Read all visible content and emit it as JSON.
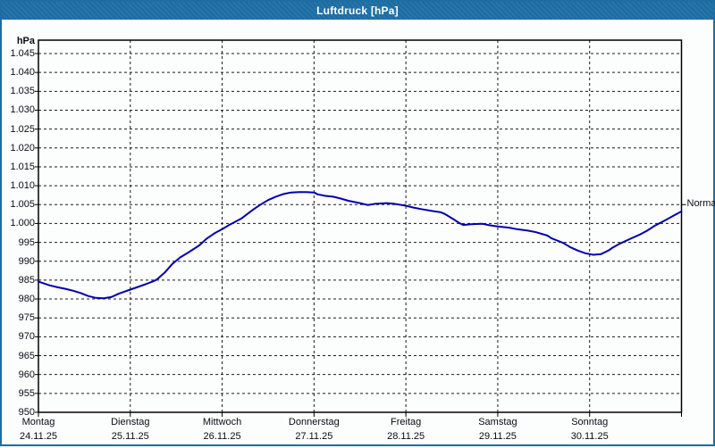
{
  "window": {
    "title": "Luftdruck [hPa]",
    "titlebar_color": "#1d6ea4",
    "border_color": "#1d6ea4"
  },
  "chart_data": {
    "type": "line",
    "title": "Luftdruck [hPa]",
    "ylabel": "hPa",
    "unit_label": "hPa",
    "ylim": [
      950,
      1048.6
    ],
    "grid": "dashed",
    "line_color": "#0000b4",
    "y_ticks": [
      {
        "v": 950,
        "label": "950"
      },
      {
        "v": 955,
        "label": "955"
      },
      {
        "v": 960,
        "label": "960"
      },
      {
        "v": 965,
        "label": "965"
      },
      {
        "v": 970,
        "label": "970"
      },
      {
        "v": 975,
        "label": "975"
      },
      {
        "v": 980,
        "label": "980"
      },
      {
        "v": 985,
        "label": "985"
      },
      {
        "v": 990,
        "label": "990"
      },
      {
        "v": 995,
        "label": "995"
      },
      {
        "v": 1000,
        "label": "1.000"
      },
      {
        "v": 1005,
        "label": "1.005"
      },
      {
        "v": 1010,
        "label": "1.010"
      },
      {
        "v": 1015,
        "label": "1.015"
      },
      {
        "v": 1020,
        "label": "1.020"
      },
      {
        "v": 1025,
        "label": "1.025"
      },
      {
        "v": 1030,
        "label": "1.030"
      },
      {
        "v": 1035,
        "label": "1.035"
      },
      {
        "v": 1040,
        "label": "1.040"
      },
      {
        "v": 1045,
        "label": "1.045"
      }
    ],
    "x_days": [
      {
        "name": "Montag",
        "date": "24.11.25"
      },
      {
        "name": "Dienstag",
        "date": "25.11.25"
      },
      {
        "name": "Mittwoch",
        "date": "26.11.25"
      },
      {
        "name": "Donnerstag",
        "date": "27.11.25"
      },
      {
        "name": "Freitag",
        "date": "28.11.25"
      },
      {
        "name": "Samstag",
        "date": "29.11.25"
      },
      {
        "name": "Sonntag",
        "date": "30.11.25"
      }
    ],
    "normal": {
      "label": "Normal",
      "value": 1005
    },
    "series": [
      {
        "name": "Luftdruck",
        "color": "#0000b4",
        "points_h_v": [
          [
            0,
            984.6
          ],
          [
            3,
            983.6
          ],
          [
            5,
            983.1
          ],
          [
            7,
            982.7
          ],
          [
            9,
            982.2
          ],
          [
            11,
            981.6
          ],
          [
            13,
            980.8
          ],
          [
            15,
            980.3
          ],
          [
            17,
            980.2
          ],
          [
            19,
            980.5
          ],
          [
            21,
            981.4
          ],
          [
            24,
            982.5
          ],
          [
            26,
            983.2
          ],
          [
            28,
            983.9
          ],
          [
            30,
            984.7
          ],
          [
            31,
            985.2
          ],
          [
            33,
            987.0
          ],
          [
            35,
            989.3
          ],
          [
            37,
            991.0
          ],
          [
            39,
            992.2
          ],
          [
            42,
            994.2
          ],
          [
            44,
            996.0
          ],
          [
            46,
            997.4
          ],
          [
            48,
            998.5
          ],
          [
            50,
            999.7
          ],
          [
            53,
            1001.3
          ],
          [
            56,
            1003.6
          ],
          [
            58,
            1005.0
          ],
          [
            60,
            1006.2
          ],
          [
            62,
            1007.1
          ],
          [
            64,
            1007.8
          ],
          [
            66,
            1008.2
          ],
          [
            68,
            1008.3
          ],
          [
            70,
            1008.3
          ],
          [
            72,
            1008.2
          ],
          [
            73,
            1007.7
          ],
          [
            75,
            1007.3
          ],
          [
            77,
            1007.1
          ],
          [
            79,
            1006.6
          ],
          [
            81,
            1006.0
          ],
          [
            84,
            1005.4
          ],
          [
            86,
            1004.9
          ],
          [
            88,
            1005.2
          ],
          [
            91,
            1005.4
          ],
          [
            93,
            1005.2
          ],
          [
            96,
            1004.7
          ],
          [
            98,
            1004.2
          ],
          [
            100,
            1003.8
          ],
          [
            103,
            1003.3
          ],
          [
            105,
            1003.0
          ],
          [
            106,
            1002.6
          ],
          [
            108,
            1001.4
          ],
          [
            110,
            1000.1
          ],
          [
            111,
            999.6
          ],
          [
            113,
            999.8
          ],
          [
            116,
            999.9
          ],
          [
            118,
            999.5
          ],
          [
            120,
            999.2
          ],
          [
            123,
            998.9
          ],
          [
            125,
            998.5
          ],
          [
            128,
            998.1
          ],
          [
            130,
            997.7
          ],
          [
            133,
            996.8
          ],
          [
            134,
            996.1
          ],
          [
            137,
            994.9
          ],
          [
            139,
            993.7
          ],
          [
            141,
            992.8
          ],
          [
            143,
            992.1
          ],
          [
            144,
            991.9
          ],
          [
            145,
            991.7
          ],
          [
            147,
            991.9
          ],
          [
            149,
            992.9
          ],
          [
            150,
            993.6
          ],
          [
            152,
            994.7
          ],
          [
            155,
            996.1
          ],
          [
            157,
            997.0
          ],
          [
            159,
            998.1
          ],
          [
            161,
            999.4
          ],
          [
            164,
            1001.0
          ],
          [
            166,
            1002.1
          ],
          [
            168,
            1003.2
          ]
        ]
      }
    ]
  }
}
